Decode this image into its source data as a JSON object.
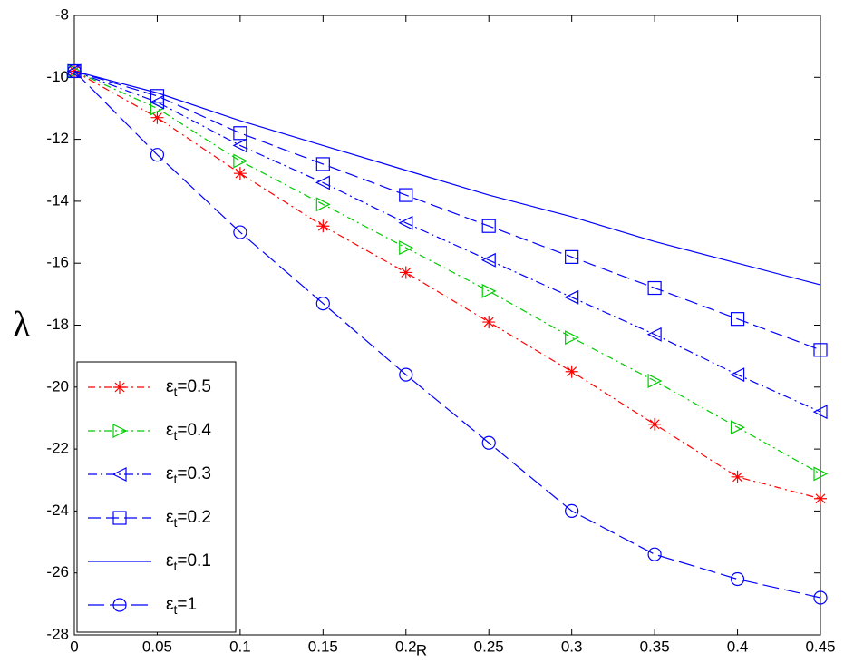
{
  "chart_data": {
    "type": "line",
    "x_label": "R",
    "y_label": "λ",
    "x": [
      0,
      0.05,
      0.1,
      0.15,
      0.2,
      0.25,
      0.3,
      0.35,
      0.4,
      0.45
    ],
    "xlim": [
      0,
      0.45
    ],
    "xticks": [
      0,
      0.05,
      0.1,
      0.15,
      0.2,
      0.25,
      0.3,
      0.35,
      0.4,
      0.45
    ],
    "ylim": [
      -28,
      -8
    ],
    "yticks": [
      -28,
      -26,
      -24,
      -22,
      -20,
      -18,
      -16,
      -14,
      -12,
      -10,
      -8
    ],
    "grid": false,
    "legend": "lower left",
    "series": [
      {
        "name": "εt=0.5",
        "color": "#ff0000",
        "dash": "8 4 2 4",
        "marker": "star",
        "values": [
          -9.8,
          -11.3,
          -13.1,
          -14.8,
          -16.3,
          -17.9,
          -19.5,
          -21.2,
          -22.9,
          -23.6
        ]
      },
      {
        "name": "εt=0.4",
        "color": "#00cc00",
        "dash": "8 4 2 4",
        "marker": "triangle-right",
        "values": [
          -9.8,
          -11.0,
          -12.7,
          -14.1,
          -15.5,
          -16.9,
          -18.4,
          -19.8,
          -21.3,
          -22.8
        ]
      },
      {
        "name": "εt=0.3",
        "color": "#0000ff",
        "dash": "10 4 2 4",
        "marker": "triangle-left",
        "values": [
          -9.8,
          -10.8,
          -12.2,
          -13.4,
          -14.7,
          -15.9,
          -17.1,
          -18.3,
          -19.6,
          -20.8
        ]
      },
      {
        "name": "εt=0.2",
        "color": "#0000ff",
        "dash": "14 6",
        "marker": "square",
        "values": [
          -9.8,
          -10.6,
          -11.8,
          -12.8,
          -13.8,
          -14.8,
          -15.8,
          -16.8,
          -17.8,
          -18.8
        ]
      },
      {
        "name": "εt=0.1",
        "color": "#0000ff",
        "dash": "none",
        "marker": "none",
        "values": [
          -9.8,
          -10.5,
          -11.4,
          -12.2,
          -13.0,
          -13.8,
          -14.5,
          -15.3,
          -16.0,
          -16.7
        ]
      },
      {
        "name": "εt=1",
        "color": "#0000ff",
        "dash": "18 6",
        "marker": "circle",
        "values": [
          -9.8,
          -12.5,
          -15.0,
          -17.3,
          -19.6,
          -21.8,
          -24.0,
          -25.4,
          -26.2,
          -26.8
        ]
      }
    ]
  }
}
